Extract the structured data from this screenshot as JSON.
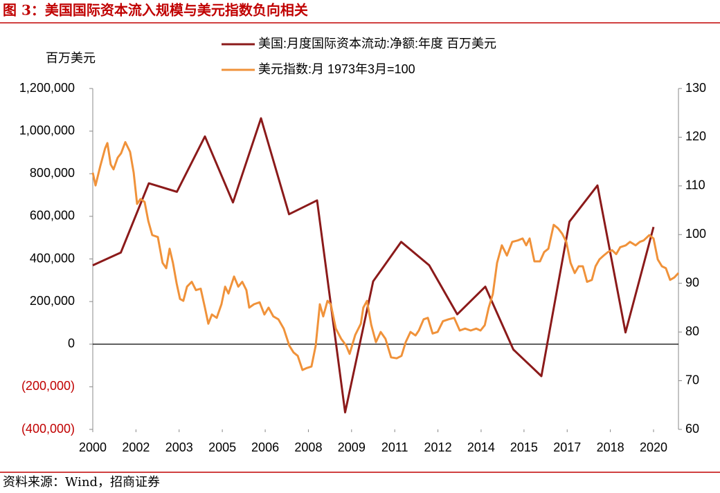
{
  "chart_data": {
    "type": "line",
    "title": "图 3：美国国际资本流入规模与美元指数负向相关",
    "source": "资料来源：Wind，招商证券",
    "y_unit_label": "百万美元",
    "negative_tick_color": "#c00000",
    "xlim": [
      2000,
      2021
    ],
    "xticks": [
      2000,
      {
        "value": 2001.54,
        "label": "2002"
      },
      {
        "value": 2003.08,
        "label": "2003"
      },
      {
        "value": 2004.62,
        "label": "2005"
      },
      {
        "value": 2006.15,
        "label": "2006"
      },
      {
        "value": 2007.69,
        "label": "2008"
      },
      {
        "value": 2009.23,
        "label": "2009"
      },
      {
        "value": 2010.77,
        "label": "2011"
      },
      {
        "value": 2012.31,
        "label": "2012"
      },
      {
        "value": 2013.85,
        "label": "2014"
      },
      {
        "value": 2015.38,
        "label": "2015"
      },
      {
        "value": 2016.92,
        "label": "2017"
      },
      {
        "value": 2018.46,
        "label": "2018"
      },
      2020
    ],
    "ylim": [
      -400000,
      1200000
    ],
    "yticks": [
      {
        "value": -400000,
        "label": "(400,000)"
      },
      {
        "value": -200000,
        "label": "(200,000)"
      },
      0,
      {
        "value": 200000,
        "label": "200,000"
      },
      {
        "value": 400000,
        "label": "400,000"
      },
      {
        "value": 600000,
        "label": "600,000"
      },
      {
        "value": 800000,
        "label": "800,000"
      },
      {
        "value": 1000000,
        "label": "1,000,000"
      },
      {
        "value": 1200000,
        "label": "1,200,000"
      }
    ],
    "y2lim": [
      60,
      130
    ],
    "y2ticks": [
      60,
      70,
      80,
      90,
      100,
      110,
      120,
      130
    ],
    "series": [
      {
        "name": "美国:月度国际资本流动:净额:年度 百万美元",
        "color": "#8b1a1a",
        "x": [
          2000,
          2001,
          2002,
          2003,
          2004,
          2005,
          2006,
          2007,
          2008,
          2009,
          2010,
          2011,
          2012,
          2013,
          2014,
          2015,
          2016,
          2017,
          2018,
          2019,
          2020
        ],
        "values": [
          370000,
          430000,
          755000,
          715000,
          975000,
          665000,
          1060000,
          610000,
          675000,
          -320000,
          295000,
          480000,
          370000,
          140000,
          270000,
          -25000,
          -150000,
          575000,
          745000,
          55000,
          550000
        ]
      },
      {
        "name": "美元指数:月 1973年3月=100",
        "color": "#f0923a",
        "axis": "y2",
        "x": [
          2000.0,
          2000.1,
          2000.27,
          2000.44,
          2000.52,
          2000.64,
          2000.74,
          2000.89,
          2001.01,
          2001.16,
          2001.33,
          2001.46,
          2001.58,
          2001.7,
          2001.85,
          2001.98,
          2002.12,
          2002.32,
          2002.49,
          2002.62,
          2002.74,
          2002.86,
          2002.99,
          2003.11,
          2003.23,
          2003.36,
          2003.53,
          2003.68,
          2003.85,
          2004.0,
          2004.12,
          2004.25,
          2004.42,
          2004.59,
          2004.72,
          2004.84,
          2005.04,
          2005.19,
          2005.33,
          2005.48,
          2005.58,
          2005.75,
          2005.95,
          2006.12,
          2006.27,
          2006.44,
          2006.62,
          2006.81,
          2007.01,
          2007.16,
          2007.31,
          2007.48,
          2007.63,
          2007.8,
          2007.95,
          2008.1,
          2008.22,
          2008.37,
          2008.49,
          2008.67,
          2008.86,
          2009.04,
          2009.16,
          2009.36,
          2009.56,
          2009.65,
          2009.78,
          2009.93,
          2010.1,
          2010.27,
          2010.44,
          2010.64,
          2010.84,
          2011.01,
          2011.16,
          2011.33,
          2011.51,
          2011.63,
          2011.8,
          2011.95,
          2012.12,
          2012.3,
          2012.49,
          2012.69,
          2012.89,
          2013.09,
          2013.28,
          2013.48,
          2013.68,
          2013.83,
          2013.98,
          2014.12,
          2014.27,
          2014.42,
          2014.59,
          2014.77,
          2014.96,
          2015.16,
          2015.33,
          2015.46,
          2015.58,
          2015.75,
          2015.95,
          2016.1,
          2016.25,
          2016.44,
          2016.59,
          2016.74,
          2016.89,
          2017.04,
          2017.19,
          2017.33,
          2017.48,
          2017.63,
          2017.8,
          2017.93,
          2018.07,
          2018.22,
          2018.37,
          2018.52,
          2018.67,
          2018.81,
          2019.01,
          2019.16,
          2019.36,
          2019.51,
          2019.65,
          2019.85,
          2020.0,
          2020.15,
          2020.3,
          2020.44,
          2020.59,
          2020.74,
          2020.89
        ],
        "values": [
          112.7,
          110.1,
          114.1,
          117.7,
          118.8,
          114.4,
          113.4,
          115.8,
          116.7,
          119.0,
          117.0,
          112.7,
          106.3,
          107.3,
          106.7,
          102.8,
          99.9,
          99.5,
          94.2,
          93.1,
          97.1,
          94.2,
          90.0,
          86.8,
          86.4,
          89.3,
          90.3,
          88.6,
          88.9,
          85.0,
          81.7,
          83.6,
          82.9,
          85.7,
          89.3,
          87.9,
          91.4,
          89.3,
          90.3,
          88.6,
          85.0,
          85.7,
          86.1,
          83.6,
          85.0,
          83.2,
          82.6,
          80.7,
          77.2,
          75.8,
          75.1,
          72.2,
          72.6,
          72.9,
          77.2,
          85.7,
          83.2,
          86.4,
          85.7,
          80.7,
          78.6,
          77.2,
          75.5,
          79.4,
          81.7,
          85.0,
          86.4,
          81.5,
          77.9,
          80.0,
          78.6,
          74.8,
          74.6,
          75.1,
          77.9,
          80.0,
          79.3,
          80.3,
          82.6,
          82.9,
          79.7,
          80.0,
          82.2,
          82.6,
          82.9,
          80.3,
          80.7,
          80.3,
          80.7,
          80.3,
          81.4,
          85.0,
          87.8,
          94.2,
          97.8,
          95.7,
          98.5,
          98.8,
          99.2,
          97.8,
          99.2,
          94.5,
          94.5,
          96.4,
          97.1,
          102.0,
          101.3,
          100.2,
          98.5,
          94.2,
          92.1,
          93.5,
          93.5,
          90.3,
          90.7,
          93.5,
          94.9,
          95.7,
          96.4,
          96.8,
          96.0,
          97.4,
          97.8,
          98.5,
          97.8,
          98.5,
          98.8,
          99.9,
          99.2,
          94.9,
          93.5,
          93.1,
          90.7,
          91.2,
          92.1
        ]
      }
    ]
  }
}
